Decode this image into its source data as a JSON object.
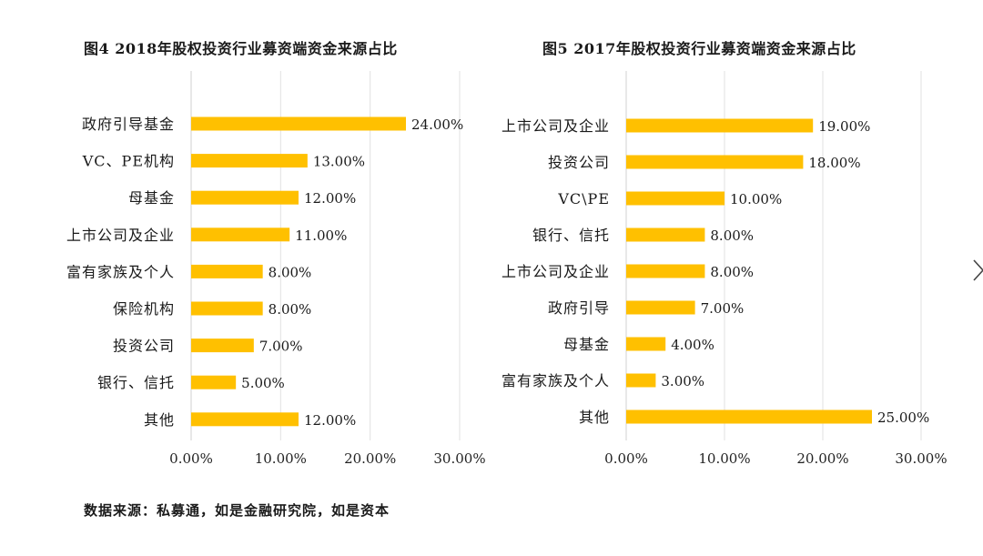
{
  "source_text": "数据来源：私募通，如是金融研究院，如是资本",
  "chevron_icon": "chevron-right-icon",
  "bar_color": "#FFC000",
  "chart_data": [
    {
      "type": "bar",
      "orientation": "horizontal",
      "title": "图4  2018年股权投资行业募资端资金来源占比",
      "categories": [
        "政府引导基金",
        "VC、PE机构",
        "母基金",
        "上市公司及企业",
        "富有家族及个人",
        "保险机构",
        "投资公司",
        "银行、信托",
        "其他"
      ],
      "values": [
        24,
        13,
        12,
        11,
        8,
        8,
        7,
        5,
        12
      ],
      "value_labels": [
        "24.00%",
        "13.00%",
        "12.00%",
        "11.00%",
        "8.00%",
        "8.00%",
        "7.00%",
        "5.00%",
        "12.00%"
      ],
      "xlim": [
        0,
        30
      ],
      "xticks": [
        "0.00%",
        "10.00%",
        "20.00%",
        "30.00%"
      ],
      "grid": true
    },
    {
      "type": "bar",
      "orientation": "horizontal",
      "title": "图5  2017年股权投资行业募资端资金来源占比",
      "categories": [
        "上市公司及企业",
        "投资公司",
        "VC\\PE",
        "银行、信托",
        "上市公司及企业",
        "政府引导",
        "母基金",
        "富有家族及个人",
        "其他"
      ],
      "values": [
        19,
        18,
        10,
        8,
        8,
        7,
        4,
        3,
        25
      ],
      "value_labels": [
        "19.00%",
        "18.00%",
        "10.00%",
        "8.00%",
        "8.00%",
        "7.00%",
        "4.00%",
        "3.00%",
        "25.00%"
      ],
      "xlim": [
        0,
        30
      ],
      "xticks": [
        "0.00%",
        "10.00%",
        "20.00%",
        "30.00%"
      ],
      "grid": true
    }
  ]
}
